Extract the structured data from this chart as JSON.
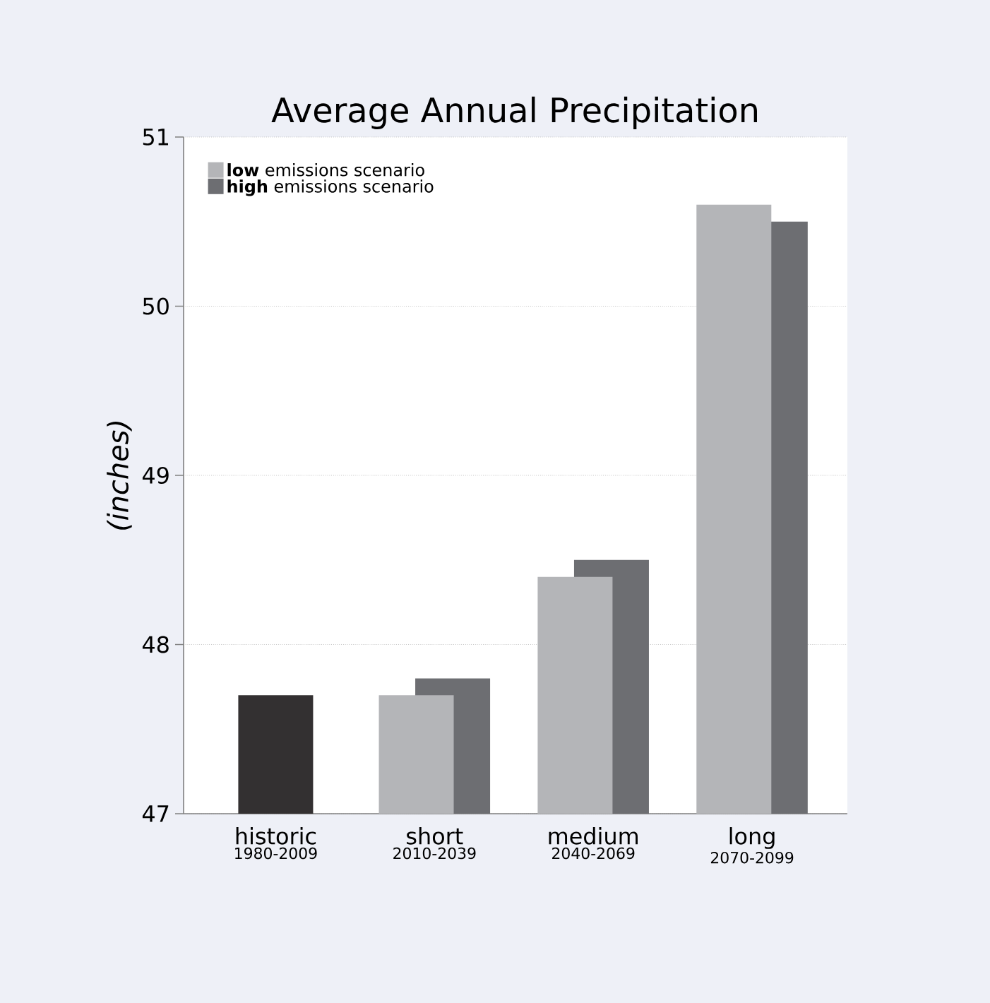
{
  "chart_data": {
    "type": "bar",
    "title": "Average Annual Precipitation",
    "ylabel": "(inches)",
    "categories": [
      "historic",
      "short",
      "medium",
      "long"
    ],
    "annotations": [
      "1980-2009",
      "2010-2039",
      "2040-2069",
      "2070-2099"
    ],
    "series": [
      {
        "color": "#333031",
        "values": [
          47.7,
          null,
          null,
          null
        ]
      },
      {
        "name": "**high** emissions scenario",
        "color": "#6d6e72",
        "values": [
          null,
          47.8,
          48.5,
          50.5
        ]
      },
      {
        "name": "**low** emissions scenario",
        "color": "#b4b5b8",
        "values": [
          null,
          47.7,
          48.4,
          50.6
        ]
      }
    ],
    "ylim": [
      47,
      51
    ],
    "yticks": [
      47,
      48,
      49,
      50,
      51
    ],
    "grid": "y",
    "legend": "top left"
  }
}
